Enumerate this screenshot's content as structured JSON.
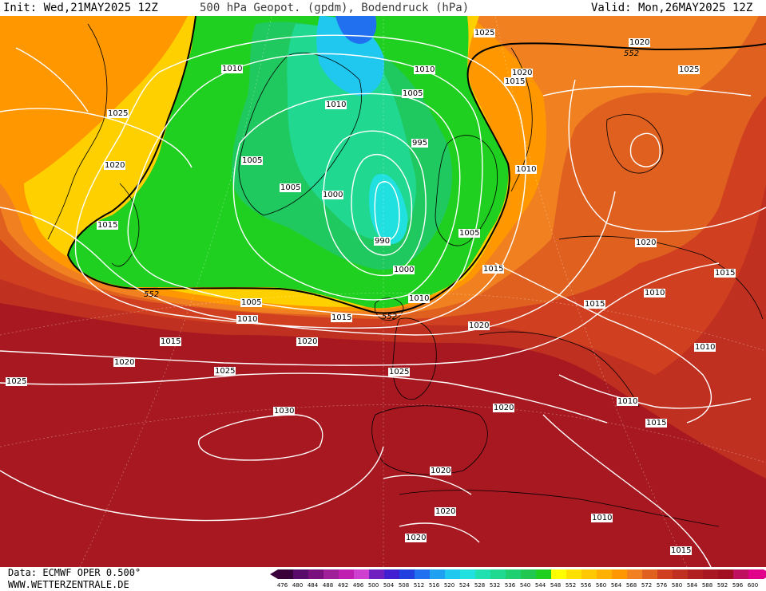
{
  "header": {
    "init": "Init: Wed,21MAY2025 12Z",
    "title": "500 hPa Geopot. (gpdm), Bodendruck (hPa)",
    "valid": "Valid: Mon,26MAY2025 12Z"
  },
  "footer": {
    "source": "Data: ECMWF OPER 0.500°",
    "website": "WWW.WETTERZENTRALE.DE"
  },
  "colorbar": {
    "levels": [
      "476",
      "480",
      "484",
      "488",
      "492",
      "496",
      "500",
      "504",
      "508",
      "512",
      "516",
      "520",
      "524",
      "528",
      "532",
      "536",
      "540",
      "544",
      "548",
      "552",
      "556",
      "560",
      "564",
      "568",
      "572",
      "576",
      "580",
      "584",
      "588",
      "592",
      "596",
      "600"
    ],
    "colors": [
      "#3a003a",
      "#5a0a6a",
      "#7a107e",
      "#a0209a",
      "#c020b0",
      "#d040d0",
      "#7020c0",
      "#4020d0",
      "#2040e0",
      "#2070f0",
      "#20a0f0",
      "#20c8f0",
      "#20e0e0",
      "#20e0b0",
      "#20d890",
      "#20d070",
      "#20c850",
      "#20d020",
      "#ffff00",
      "#ffe000",
      "#ffc800",
      "#ffb000",
      "#ff9800",
      "#f08020",
      "#e06020",
      "#d04020",
      "#c03020",
      "#b02020",
      "#a81820",
      "#a01020",
      "#c01060",
      "#e0008a"
    ]
  },
  "isobar_labels": [
    {
      "t": "1010"
    },
    {
      "t": "1025"
    },
    {
      "t": "1020"
    },
    {
      "t": "1015"
    },
    {
      "t": "1010"
    },
    {
      "t": "1005"
    },
    {
      "t": "1005"
    },
    {
      "t": "1000"
    },
    {
      "t": "995"
    },
    {
      "t": "990"
    },
    {
      "t": "1005"
    },
    {
      "t": "1010"
    },
    {
      "t": "1025"
    },
    {
      "t": "1020"
    },
    {
      "t": "1015"
    },
    {
      "t": "1020"
    },
    {
      "t": "1025"
    },
    {
      "t": "1010"
    },
    {
      "t": "1005"
    },
    {
      "t": "1000"
    },
    {
      "t": "1010"
    },
    {
      "t": "1005"
    },
    {
      "t": "1010"
    },
    {
      "t": "1015"
    },
    {
      "t": "1015"
    },
    {
      "t": "1020"
    },
    {
      "t": "1020"
    },
    {
      "t": "1025"
    },
    {
      "t": "1025"
    },
    {
      "t": "1030"
    },
    {
      "t": "1020"
    },
    {
      "t": "1025"
    },
    {
      "t": "1020"
    },
    {
      "t": "1020"
    },
    {
      "t": "1020"
    },
    {
      "t": "1020"
    },
    {
      "t": "1015"
    },
    {
      "t": "1010"
    },
    {
      "t": "1010"
    },
    {
      "t": "1015"
    },
    {
      "t": "1015"
    },
    {
      "t": "1010"
    },
    {
      "t": "1020"
    },
    {
      "t": "1015"
    },
    {
      "t": "1010"
    },
    {
      "t": "1015"
    }
  ],
  "geopot_labels": [
    {
      "t": "552"
    },
    {
      "t": "552"
    },
    {
      "t": "552"
    }
  ]
}
